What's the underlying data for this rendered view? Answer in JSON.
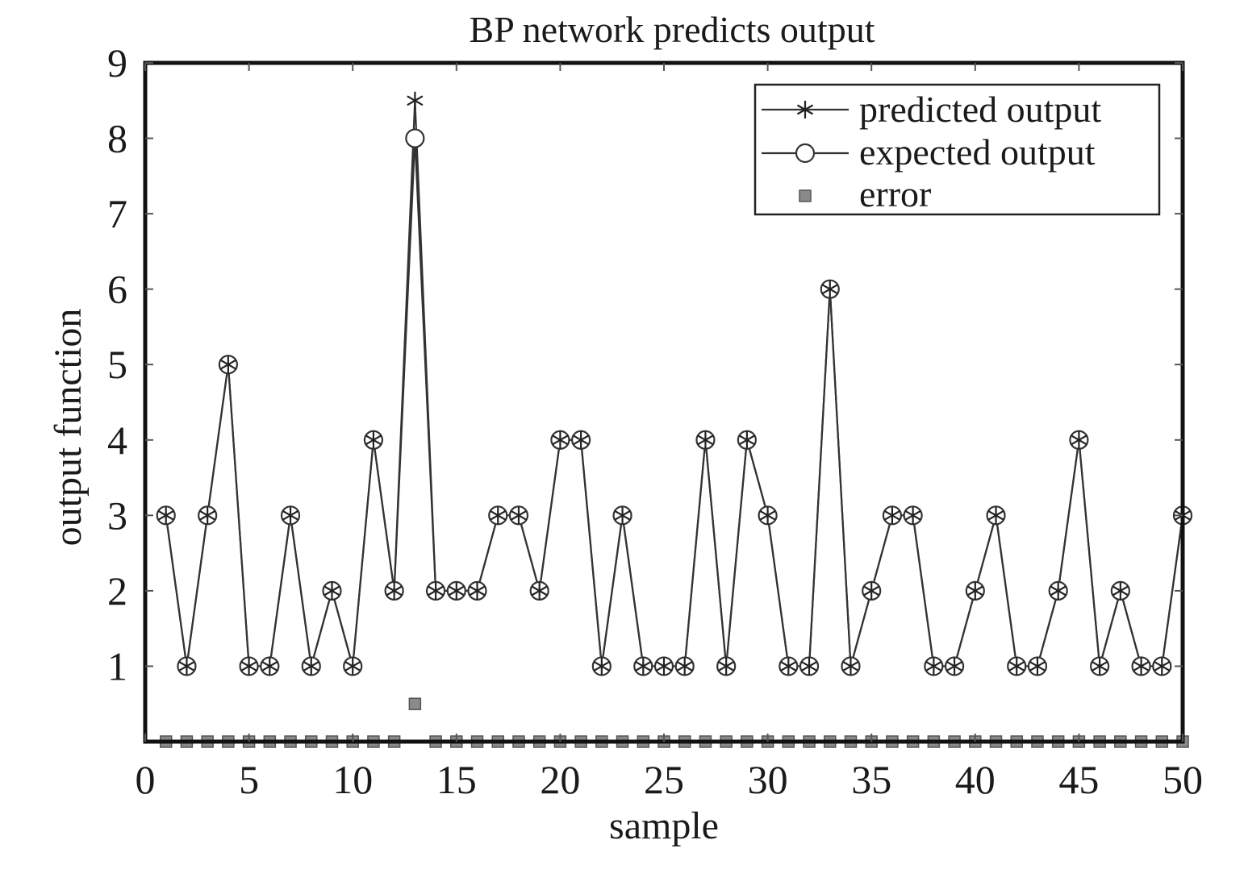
{
  "chart_data": {
    "type": "line",
    "title": "BP network predicts output",
    "xlabel": "sample",
    "ylabel": "output function",
    "xlim": [
      0,
      50
    ],
    "ylim": [
      0,
      9
    ],
    "xticks": [
      0,
      5,
      10,
      15,
      20,
      25,
      30,
      35,
      40,
      45,
      50
    ],
    "yticks": [
      1,
      2,
      3,
      4,
      5,
      6,
      7,
      8,
      9
    ],
    "grid": false,
    "legend_position": "top-right",
    "x": [
      1,
      2,
      3,
      4,
      5,
      6,
      7,
      8,
      9,
      10,
      11,
      12,
      13,
      14,
      15,
      16,
      17,
      18,
      19,
      20,
      21,
      22,
      23,
      24,
      25,
      26,
      27,
      28,
      29,
      30,
      31,
      32,
      33,
      34,
      35,
      36,
      37,
      38,
      39,
      40,
      41,
      42,
      43,
      44,
      45,
      46,
      47,
      48,
      49,
      50
    ],
    "series": [
      {
        "name": "predicted output",
        "marker": "star",
        "values": [
          3,
          1,
          3,
          5,
          1,
          1,
          3,
          1,
          2,
          1,
          4,
          2,
          8.5,
          2,
          2,
          2,
          3,
          3,
          2,
          4,
          4,
          1,
          3,
          1,
          1,
          1,
          4,
          1,
          4,
          3,
          1,
          1,
          6,
          1,
          2,
          3,
          3,
          1,
          1,
          2,
          3,
          1,
          1,
          2,
          4,
          1,
          2,
          1,
          1,
          3
        ]
      },
      {
        "name": "expected output",
        "marker": "circle",
        "values": [
          3,
          1,
          3,
          5,
          1,
          1,
          3,
          1,
          2,
          1,
          4,
          2,
          8,
          2,
          2,
          2,
          3,
          3,
          2,
          4,
          4,
          1,
          3,
          1,
          1,
          1,
          4,
          1,
          4,
          3,
          1,
          1,
          6,
          1,
          2,
          3,
          3,
          1,
          1,
          2,
          3,
          1,
          1,
          2,
          4,
          1,
          2,
          1,
          1,
          3
        ]
      },
      {
        "name": "error",
        "marker": "square",
        "values": [
          0,
          0,
          0,
          0,
          0,
          0,
          0,
          0,
          0,
          0,
          0,
          0,
          0.5,
          0,
          0,
          0,
          0,
          0,
          0,
          0,
          0,
          0,
          0,
          0,
          0,
          0,
          0,
          0,
          0,
          0,
          0,
          0,
          0,
          0,
          0,
          0,
          0,
          0,
          0,
          0,
          0,
          0,
          0,
          0,
          0,
          0,
          0,
          0,
          0,
          0
        ]
      }
    ]
  }
}
